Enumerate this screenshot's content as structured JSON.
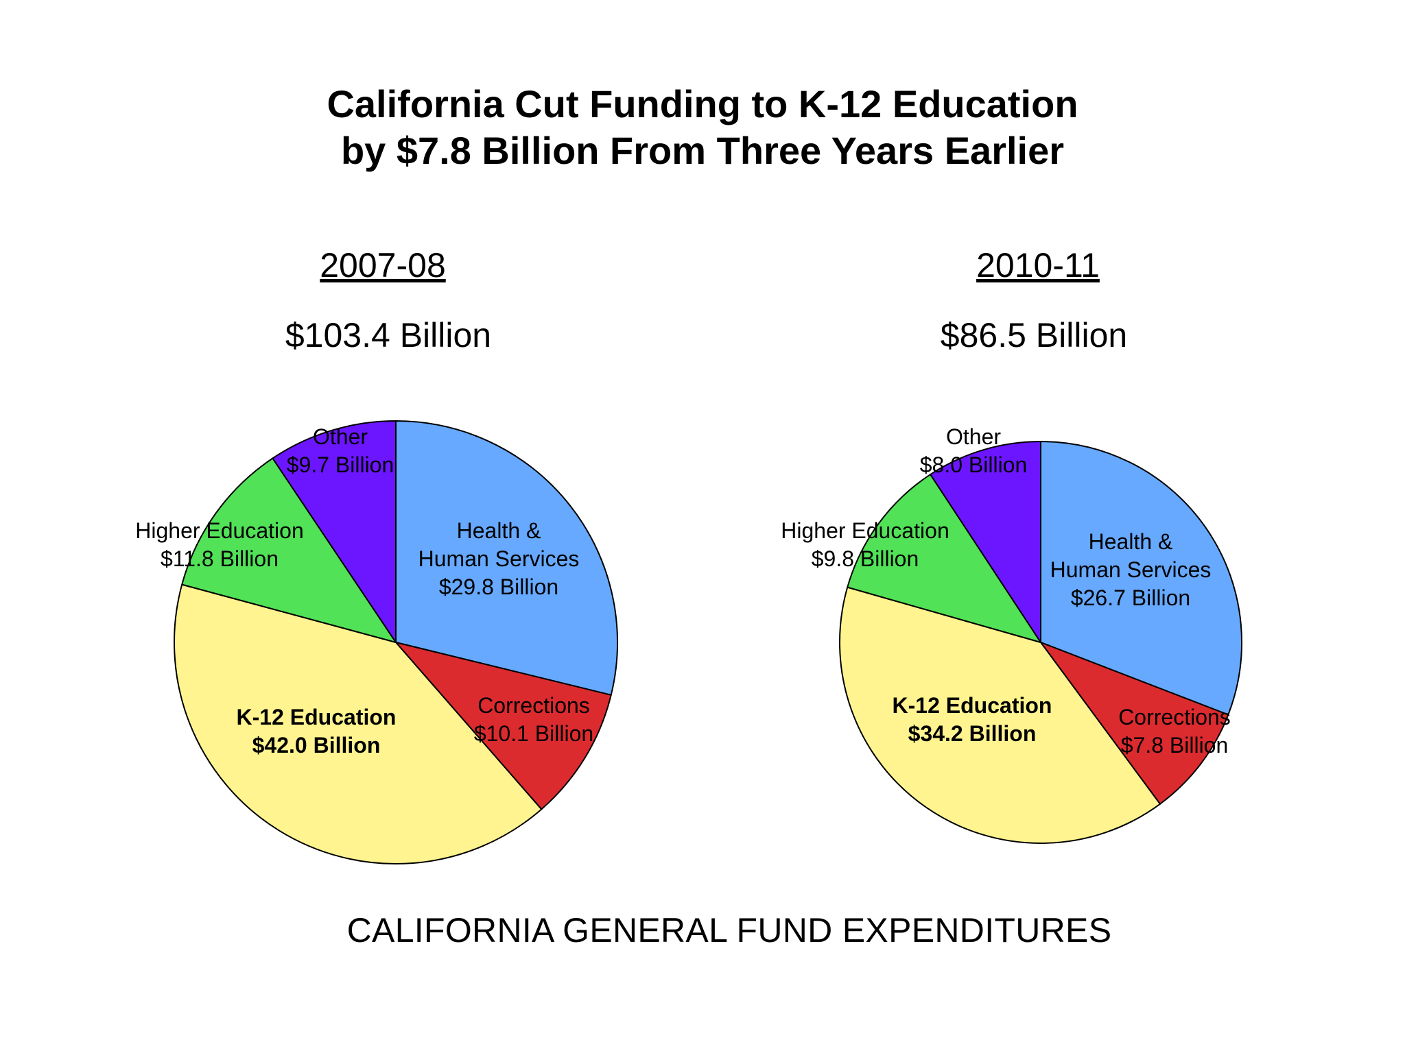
{
  "title": {
    "line1": "California Cut Funding to K-12 Education",
    "line2": "by $7.8 Billion From Three Years Earlier"
  },
  "footer": "CALIFORNIA GENERAL FUND EXPENDITURES",
  "chart_data": [
    {
      "type": "pie",
      "period": "2007-08",
      "total_label": "$103.4 Billion",
      "total": 103.4,
      "slices": [
        {
          "name": "Health & Human Services",
          "label_lines": [
            "Health &",
            "Human Services",
            "$29.8 Billion"
          ],
          "value": 29.8,
          "color": "#66a9ff",
          "bold": false
        },
        {
          "name": "Corrections",
          "label_lines": [
            "Corrections",
            "$10.1 Billion"
          ],
          "value": 10.1,
          "color": "#dc2b2f",
          "bold": false
        },
        {
          "name": "K-12 Education",
          "label_lines": [
            "K-12 Education",
            "$42.0 Billion"
          ],
          "value": 42.0,
          "color": "#fff48f",
          "bold": true
        },
        {
          "name": "Higher Education",
          "label_lines": [
            "Higher Education",
            "$11.8 Billion"
          ],
          "value": 11.8,
          "color": "#51e257",
          "bold": false
        },
        {
          "name": "Other",
          "label_lines": [
            "Other",
            "$9.7 Billion"
          ],
          "value": 9.7,
          "color": "#6c16ff",
          "bold": false
        }
      ]
    },
    {
      "type": "pie",
      "period": "2010-11",
      "total_label": "$86.5 Billion",
      "total": 86.5,
      "slices": [
        {
          "name": "Health & Human Services",
          "label_lines": [
            "Health &",
            "Human Services",
            "$26.7 Billion"
          ],
          "value": 26.7,
          "color": "#66a9ff",
          "bold": false
        },
        {
          "name": "Corrections",
          "label_lines": [
            "Corrections",
            "$7.8 Billion"
          ],
          "value": 7.8,
          "color": "#dc2b2f",
          "bold": false
        },
        {
          "name": "K-12 Education",
          "label_lines": [
            "K-12 Education",
            "$34.2 Billion"
          ],
          "value": 34.2,
          "color": "#fff48f",
          "bold": true
        },
        {
          "name": "Higher Education",
          "label_lines": [
            "Higher Education",
            "$9.8 Billion"
          ],
          "value": 9.8,
          "color": "#51e257",
          "bold": false
        },
        {
          "name": "Other",
          "label_lines": [
            "Other",
            "$8.0 Billion"
          ],
          "value": 8.0,
          "color": "#6c16ff",
          "bold": false
        }
      ]
    }
  ]
}
